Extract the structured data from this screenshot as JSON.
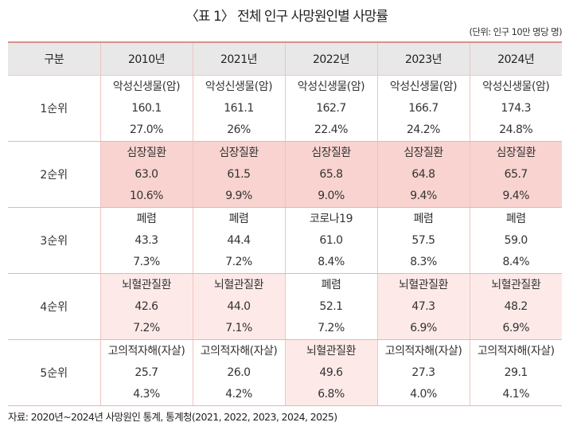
{
  "title": "〈표 1〉 전체 인구 사망원인별 사망률",
  "unit": "(단위: 인구 10만 명당 명)",
  "headers": [
    "구분",
    "2010년",
    "2021년",
    "2022년",
    "2023년",
    "2024년"
  ],
  "rows": [
    {
      "rank": "1순위",
      "cells": [
        {
          "cause": "악성신생물(암)",
          "rate": "160.1",
          "share": "27.0%",
          "highlight": "none"
        },
        {
          "cause": "악성신생물(암)",
          "rate": "161.1",
          "share": "26%",
          "highlight": "none"
        },
        {
          "cause": "악성신생물(암)",
          "rate": "162.7",
          "share": "22.4%",
          "highlight": "none"
        },
        {
          "cause": "악성신생물(암)",
          "rate": "166.7",
          "share": "24.2%",
          "highlight": "none"
        },
        {
          "cause": "악성신생물(암)",
          "rate": "174.3",
          "share": "24.8%",
          "highlight": "none"
        }
      ]
    },
    {
      "rank": "2순위",
      "cells": [
        {
          "cause": "심장질환",
          "rate": "63.0",
          "share": "10.6%",
          "highlight": "strong"
        },
        {
          "cause": "심장질환",
          "rate": "61.5",
          "share": "9.9%",
          "highlight": "strong"
        },
        {
          "cause": "심장질환",
          "rate": "65.8",
          "share": "9.0%",
          "highlight": "strong"
        },
        {
          "cause": "심장질환",
          "rate": "64.8",
          "share": "9.4%",
          "highlight": "strong"
        },
        {
          "cause": "심장질환",
          "rate": "65.7",
          "share": "9.4%",
          "highlight": "strong"
        }
      ]
    },
    {
      "rank": "3순위",
      "cells": [
        {
          "cause": "폐렴",
          "rate": "43.3",
          "share": "7.3%",
          "highlight": "none"
        },
        {
          "cause": "폐렴",
          "rate": "44.4",
          "share": "7.2%",
          "highlight": "none"
        },
        {
          "cause": "코로나19",
          "rate": "61.0",
          "share": "8.4%",
          "highlight": "none"
        },
        {
          "cause": "폐렴",
          "rate": "57.5",
          "share": "8.3%",
          "highlight": "none"
        },
        {
          "cause": "폐렴",
          "rate": "59.0",
          "share": "8.4%",
          "highlight": "none"
        }
      ]
    },
    {
      "rank": "4순위",
      "cells": [
        {
          "cause": "뇌혈관질환",
          "rate": "42.6",
          "share": "7.2%",
          "highlight": "light"
        },
        {
          "cause": "뇌혈관질환",
          "rate": "44.0",
          "share": "7.1%",
          "highlight": "light"
        },
        {
          "cause": "폐렴",
          "rate": "52.1",
          "share": "7.2%",
          "highlight": "none"
        },
        {
          "cause": "뇌혈관질환",
          "rate": "47.3",
          "share": "6.9%",
          "highlight": "light"
        },
        {
          "cause": "뇌혈관질환",
          "rate": "48.2",
          "share": "6.9%",
          "highlight": "light"
        }
      ]
    },
    {
      "rank": "5순위",
      "cells": [
        {
          "cause": "고의적자해(자살)",
          "rate": "25.7",
          "share": "4.3%",
          "highlight": "none"
        },
        {
          "cause": "고의적자해(자살)",
          "rate": "26.0",
          "share": "4.2%",
          "highlight": "none"
        },
        {
          "cause": "뇌혈관질환",
          "rate": "49.6",
          "share": "6.8%",
          "highlight": "light"
        },
        {
          "cause": "고의적자해(자살)",
          "rate": "27.3",
          "share": "4.0%",
          "highlight": "none"
        },
        {
          "cause": "고의적자해(자살)",
          "rate": "29.1",
          "share": "4.1%",
          "highlight": "none"
        }
      ]
    }
  ],
  "colors": {
    "heart_disease": "#f8d3cf",
    "cerebrovascular": "#fdeae8",
    "header_bg": "#e8e8e8",
    "top_rule": "#d9908a"
  },
  "source": "자료: 2020년~2024년 사망원인 통계, 통계청(2021, 2022, 2023, 2024, 2025)"
}
